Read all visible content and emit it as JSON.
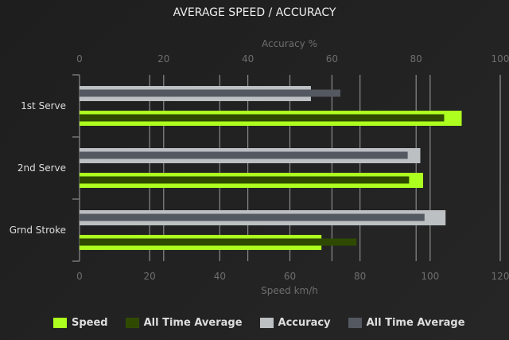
{
  "chart_data": {
    "type": "bar",
    "orientation": "horizontal",
    "title": "AVERAGE SPEED / ACCURACY",
    "categories": [
      "1st Serve",
      "2nd Serve",
      "Grnd Stroke"
    ],
    "top_axis": {
      "label": "Accuracy %",
      "range": [
        0,
        100
      ],
      "ticks": [
        0,
        20,
        40,
        60,
        80,
        100
      ]
    },
    "bottom_axis": {
      "label": "Speed km/h",
      "range": [
        0,
        120
      ],
      "ticks": [
        0,
        20,
        40,
        60,
        80,
        100,
        120
      ]
    },
    "grid": true,
    "legend_position": "bottom",
    "series": [
      {
        "name": "Speed",
        "axis": "bottom",
        "color": "#adff1f",
        "values": [
          109,
          98,
          69
        ]
      },
      {
        "name": "All Time Average",
        "axis": "bottom",
        "color": "#2f4a00",
        "values": [
          104,
          94,
          79
        ]
      },
      {
        "name": "Accuracy",
        "axis": "top",
        "color": "#bcc0c3",
        "values": [
          55,
          81,
          87
        ]
      },
      {
        "name": "All Time Average",
        "axis": "top",
        "color": "#545860",
        "values": [
          62,
          78,
          82
        ]
      }
    ]
  }
}
